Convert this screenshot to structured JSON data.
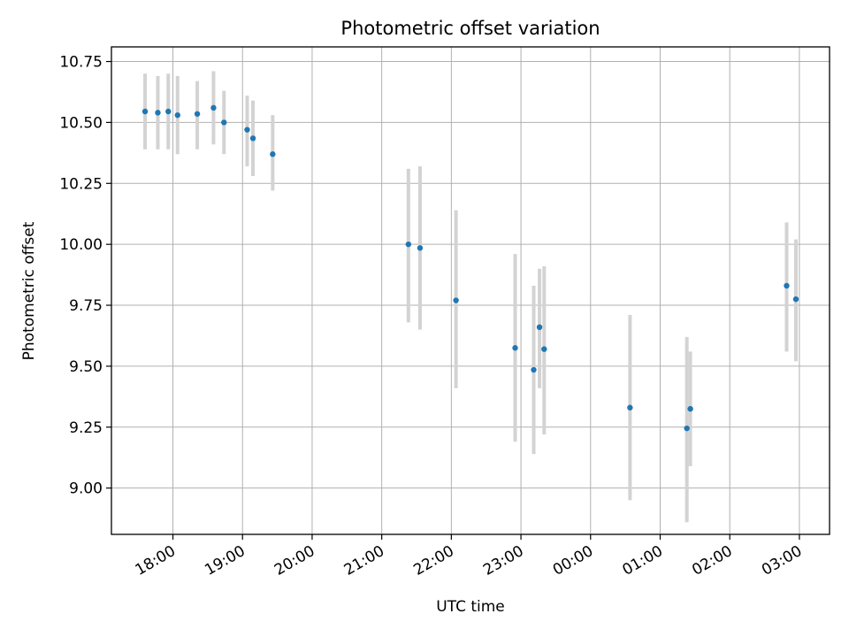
{
  "chart_data": {
    "type": "scatter",
    "title": "Photometric offset variation",
    "xlabel": "UTC time",
    "ylabel": "Photometric offset",
    "x_axis_type": "time",
    "xlim": [
      "17:07",
      "03:26"
    ],
    "ylim": [
      8.81,
      10.81
    ],
    "x_ticks": [
      "18:00",
      "19:00",
      "20:00",
      "21:00",
      "22:00",
      "23:00",
      "00:00",
      "01:00",
      "02:00",
      "03:00"
    ],
    "y_ticks": [
      "9.00",
      "9.25",
      "9.50",
      "9.75",
      "10.00",
      "10.25",
      "10.50",
      "10.75"
    ],
    "grid": true,
    "marker_color": "#1f77b4",
    "errorbar_color": "#d3d3d3",
    "points": [
      {
        "time": "17:36",
        "y": 10.545,
        "low": 10.39,
        "high": 10.7
      },
      {
        "time": "17:47",
        "y": 10.54,
        "low": 10.39,
        "high": 10.69
      },
      {
        "time": "17:56",
        "y": 10.545,
        "low": 10.39,
        "high": 10.7
      },
      {
        "time": "18:04",
        "y": 10.53,
        "low": 10.37,
        "high": 10.69
      },
      {
        "time": "18:21",
        "y": 10.535,
        "low": 10.39,
        "high": 10.67
      },
      {
        "time": "18:35",
        "y": 10.56,
        "low": 10.41,
        "high": 10.71
      },
      {
        "time": "18:44",
        "y": 10.5,
        "low": 10.37,
        "high": 10.63
      },
      {
        "time": "19:04",
        "y": 10.47,
        "low": 10.32,
        "high": 10.61
      },
      {
        "time": "19:09",
        "y": 10.435,
        "low": 10.28,
        "high": 10.59
      },
      {
        "time": "19:26",
        "y": 10.37,
        "low": 10.22,
        "high": 10.53
      },
      {
        "time": "21:23",
        "y": 10.0,
        "low": 9.68,
        "high": 10.31
      },
      {
        "time": "21:33",
        "y": 9.985,
        "low": 9.65,
        "high": 10.32
      },
      {
        "time": "22:04",
        "y": 9.77,
        "low": 9.41,
        "high": 10.14
      },
      {
        "time": "22:55",
        "y": 9.575,
        "low": 9.19,
        "high": 9.96
      },
      {
        "time": "23:11",
        "y": 9.485,
        "low": 9.14,
        "high": 9.83
      },
      {
        "time": "23:16",
        "y": 9.66,
        "low": 9.41,
        "high": 9.9
      },
      {
        "time": "23:20",
        "y": 9.57,
        "low": 9.22,
        "high": 9.91
      },
      {
        "time": "00:34",
        "y": 9.33,
        "low": 8.95,
        "high": 9.71
      },
      {
        "time": "01:23",
        "y": 9.245,
        "low": 8.86,
        "high": 9.62
      },
      {
        "time": "01:26",
        "y": 9.325,
        "low": 9.09,
        "high": 9.56
      },
      {
        "time": "02:49",
        "y": 9.83,
        "low": 9.56,
        "high": 10.09
      },
      {
        "time": "02:57",
        "y": 9.775,
        "low": 9.52,
        "high": 10.02
      }
    ]
  }
}
